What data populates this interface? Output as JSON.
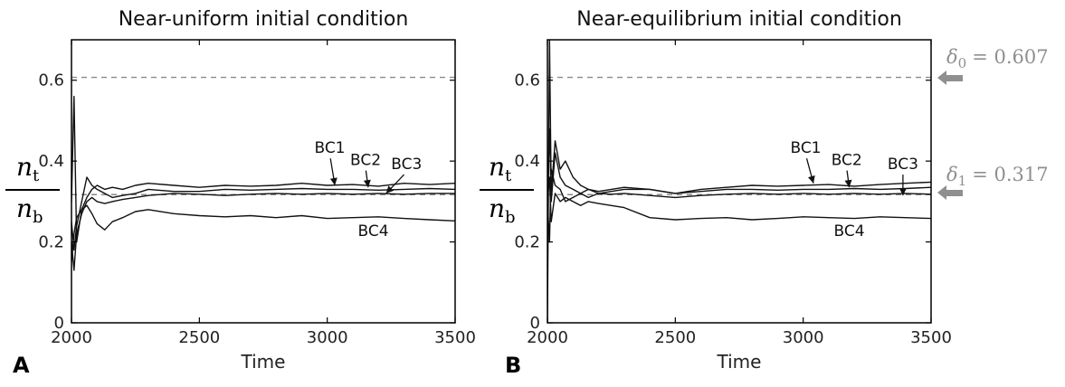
{
  "colors": {
    "series": "#111111",
    "reference": "#8a8a8a",
    "axis": "#000000",
    "arrow": "#8f8f8f"
  },
  "y_label": {
    "numerator_var": "n",
    "numerator_sub": "t",
    "denominator_var": "n",
    "denominator_sub": "b"
  },
  "references": [
    {
      "symbol": "δ",
      "sub": "0",
      "eq": "= 0.607",
      "value": 0.607
    },
    {
      "symbol": "δ",
      "sub": "1",
      "eq": "= 0.317",
      "value": 0.317
    }
  ],
  "chart_data": [
    {
      "type": "line",
      "panel_letter": "A",
      "title": "Near-uniform initial condition",
      "xlabel": "Time",
      "ylabel": "n_t / n_b",
      "xlim": [
        2000,
        3500
      ],
      "ylim": [
        0,
        0.7
      ],
      "xticks": [
        2000,
        2500,
        3000,
        3500
      ],
      "yticks": [
        0,
        0.2,
        0.4,
        0.6
      ],
      "ytick_labels": [
        "0",
        "0.2",
        "0.4",
        "0.6"
      ],
      "grid": false,
      "reference_lines": [
        0.607,
        0.317
      ],
      "annotations": [
        {
          "text": "BC1",
          "x": 3010,
          "y": 0.42,
          "ax": 3030,
          "ay": 0.34
        },
        {
          "text": "BC2",
          "x": 3150,
          "y": 0.39,
          "ax": 3160,
          "ay": 0.335
        },
        {
          "text": "BC3",
          "x": 3310,
          "y": 0.38,
          "ax": 3230,
          "ay": 0.32
        },
        {
          "text": "BC4",
          "x": 3180,
          "y": 0.215,
          "ax": null,
          "ay": null
        }
      ],
      "series": [
        {
          "name": "BC1",
          "x": [
            2000,
            2010,
            2020,
            2040,
            2060,
            2080,
            2100,
            2130,
            2160,
            2200,
            2250,
            2300,
            2400,
            2500,
            2600,
            2700,
            2800,
            2900,
            3000,
            3100,
            3200,
            3300,
            3400,
            3500
          ],
          "values": [
            0.3,
            0.56,
            0.2,
            0.28,
            0.31,
            0.33,
            0.34,
            0.33,
            0.335,
            0.33,
            0.34,
            0.345,
            0.34,
            0.335,
            0.34,
            0.338,
            0.34,
            0.345,
            0.34,
            0.342,
            0.338,
            0.345,
            0.342,
            0.345
          ]
        },
        {
          "name": "BC2",
          "x": [
            2000,
            2010,
            2020,
            2040,
            2060,
            2080,
            2100,
            2130,
            2160,
            2200,
            2250,
            2300,
            2400,
            2500,
            2600,
            2700,
            2800,
            2900,
            3000,
            3100,
            3200,
            3300,
            3400,
            3500
          ],
          "values": [
            0.25,
            0.18,
            0.24,
            0.3,
            0.36,
            0.34,
            0.33,
            0.32,
            0.31,
            0.315,
            0.32,
            0.33,
            0.325,
            0.325,
            0.33,
            0.328,
            0.33,
            0.332,
            0.33,
            0.33,
            0.328,
            0.33,
            0.332,
            0.33
          ]
        },
        {
          "name": "BC3",
          "x": [
            2000,
            2010,
            2020,
            2040,
            2060,
            2080,
            2100,
            2130,
            2160,
            2200,
            2250,
            2300,
            2400,
            2500,
            2600,
            2700,
            2800,
            2900,
            3000,
            3100,
            3200,
            3300,
            3400,
            3500
          ],
          "values": [
            0.2,
            0.13,
            0.22,
            0.27,
            0.3,
            0.31,
            0.3,
            0.295,
            0.3,
            0.305,
            0.31,
            0.315,
            0.32,
            0.318,
            0.315,
            0.318,
            0.32,
            0.318,
            0.32,
            0.318,
            0.32,
            0.318,
            0.32,
            0.32
          ]
        },
        {
          "name": "BC4",
          "x": [
            2000,
            2010,
            2020,
            2040,
            2060,
            2080,
            2100,
            2130,
            2160,
            2200,
            2250,
            2300,
            2400,
            2500,
            2600,
            2700,
            2800,
            2900,
            3000,
            3100,
            3200,
            3300,
            3400,
            3500
          ],
          "values": [
            0.15,
            0.22,
            0.26,
            0.28,
            0.29,
            0.27,
            0.245,
            0.23,
            0.25,
            0.26,
            0.275,
            0.28,
            0.27,
            0.265,
            0.262,
            0.265,
            0.26,
            0.265,
            0.258,
            0.26,
            0.262,
            0.258,
            0.255,
            0.252
          ]
        }
      ]
    },
    {
      "type": "line",
      "panel_letter": "B",
      "title": "Near-equilibrium initial condition",
      "xlabel": "Time",
      "ylabel": "n_t / n_b",
      "xlim": [
        2000,
        3500
      ],
      "ylim": [
        0,
        0.7
      ],
      "xticks": [
        2000,
        2500,
        3000,
        3500
      ],
      "yticks": [
        0,
        0.2,
        0.4,
        0.6
      ],
      "ytick_labels": [
        "0",
        "0.2",
        "0.4",
        "0.6"
      ],
      "grid": false,
      "reference_lines": [
        0.607,
        0.317
      ],
      "annotations": [
        {
          "text": "BC1",
          "x": 3010,
          "y": 0.42,
          "ax": 3040,
          "ay": 0.345
        },
        {
          "text": "BC2",
          "x": 3170,
          "y": 0.39,
          "ax": 3180,
          "ay": 0.335
        },
        {
          "text": "BC3",
          "x": 3390,
          "y": 0.38,
          "ax": 3390,
          "ay": 0.315
        },
        {
          "text": "BC4",
          "x": 3180,
          "y": 0.215,
          "ax": null,
          "ay": null
        }
      ],
      "series": [
        {
          "name": "BC1",
          "x": [
            2000,
            2008,
            2015,
            2030,
            2050,
            2070,
            2100,
            2130,
            2160,
            2200,
            2250,
            2300,
            2400,
            2500,
            2600,
            2700,
            2800,
            2900,
            3000,
            3100,
            3200,
            3300,
            3400,
            3500
          ],
          "values": [
            0.0,
            0.7,
            0.32,
            0.45,
            0.38,
            0.4,
            0.36,
            0.34,
            0.33,
            0.32,
            0.325,
            0.33,
            0.33,
            0.32,
            0.33,
            0.335,
            0.34,
            0.338,
            0.34,
            0.342,
            0.338,
            0.342,
            0.345,
            0.348
          ]
        },
        {
          "name": "BC2",
          "x": [
            2000,
            2008,
            2015,
            2030,
            2050,
            2070,
            2100,
            2130,
            2160,
            2200,
            2250,
            2300,
            2400,
            2500,
            2600,
            2700,
            2800,
            2900,
            3000,
            3100,
            3200,
            3300,
            3400,
            3500
          ],
          "values": [
            0.3,
            0.48,
            0.3,
            0.42,
            0.36,
            0.34,
            0.33,
            0.32,
            0.33,
            0.325,
            0.33,
            0.335,
            0.33,
            0.32,
            0.325,
            0.33,
            0.33,
            0.328,
            0.33,
            0.33,
            0.332,
            0.33,
            0.332,
            0.335
          ]
        },
        {
          "name": "BC3",
          "x": [
            2000,
            2008,
            2015,
            2030,
            2050,
            2070,
            2100,
            2130,
            2160,
            2200,
            2250,
            2300,
            2400,
            2500,
            2600,
            2700,
            2800,
            2900,
            3000,
            3100,
            3200,
            3300,
            3400,
            3500
          ],
          "values": [
            0.3,
            0.2,
            0.38,
            0.34,
            0.33,
            0.3,
            0.31,
            0.32,
            0.31,
            0.32,
            0.318,
            0.32,
            0.315,
            0.31,
            0.315,
            0.318,
            0.32,
            0.318,
            0.32,
            0.318,
            0.32,
            0.318,
            0.32,
            0.318
          ]
        },
        {
          "name": "BC4",
          "x": [
            2000,
            2008,
            2015,
            2030,
            2050,
            2070,
            2100,
            2130,
            2160,
            2200,
            2250,
            2300,
            2400,
            2500,
            2600,
            2700,
            2800,
            2900,
            3000,
            3100,
            3200,
            3300,
            3400,
            3500
          ],
          "values": [
            0.3,
            0.36,
            0.25,
            0.32,
            0.3,
            0.31,
            0.3,
            0.29,
            0.3,
            0.295,
            0.29,
            0.285,
            0.26,
            0.255,
            0.258,
            0.26,
            0.255,
            0.258,
            0.262,
            0.26,
            0.258,
            0.262,
            0.26,
            0.258
          ]
        }
      ]
    }
  ]
}
